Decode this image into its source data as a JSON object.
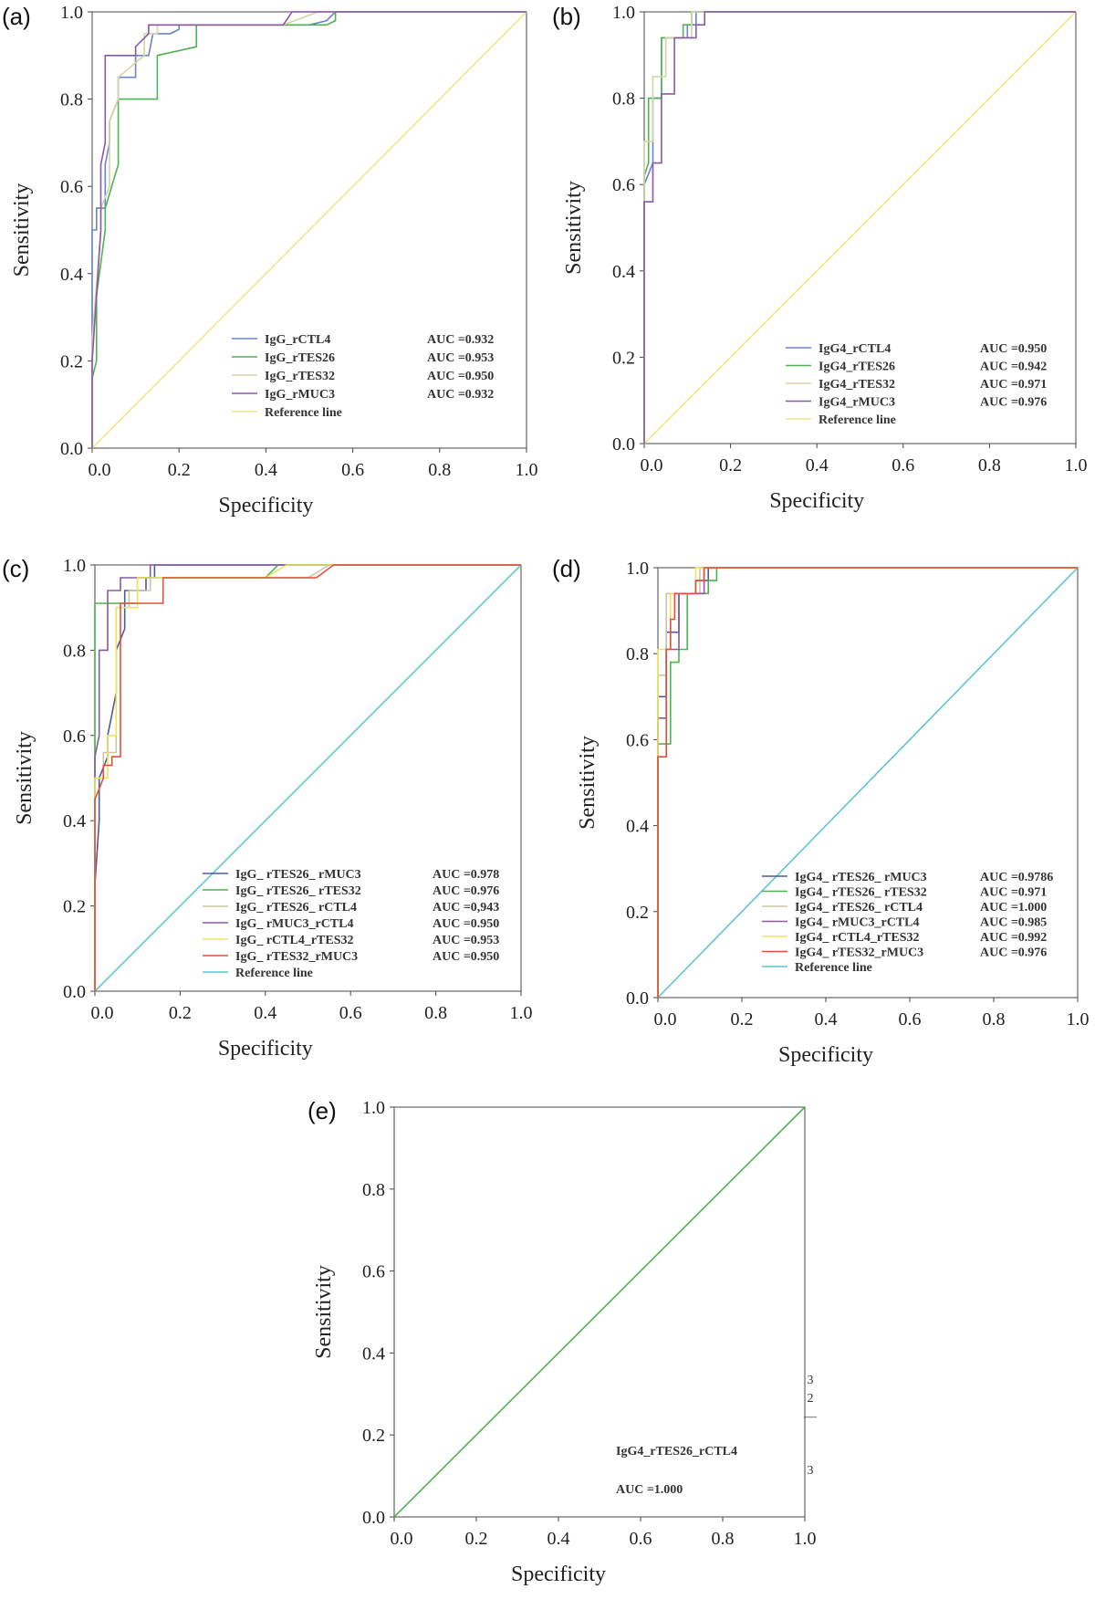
{
  "chart_data": [
    {
      "type": "line",
      "panel_label": "(a)",
      "xlabel": "Specificity",
      "ylabel": "Sensitivity",
      "xlim": [
        0,
        1
      ],
      "ylim": [
        0,
        1
      ],
      "xticks": [
        "0.0",
        "0.2",
        "0.4",
        "0.6",
        "0.8",
        "1.0"
      ],
      "yticks": [
        "0.0",
        "0.2",
        "0.4",
        "0.6",
        "0.8",
        "1.0"
      ],
      "legend_position": "bottom-right",
      "series": [
        {
          "name": "IgG_rCTL4",
          "auc": "AUC =0.932",
          "color": "#6b83c9",
          "x": [
            0,
            0,
            0.01,
            0.01,
            0.03,
            0.03,
            0.04,
            0.04,
            0.06,
            0.06,
            0.1,
            0.1,
            0.13,
            0.14,
            0.16,
            0.18,
            0.2,
            0.2,
            0.5,
            0.54,
            0.56,
            1.0
          ],
          "y": [
            0,
            0.5,
            0.5,
            0.55,
            0.55,
            0.65,
            0.7,
            0.75,
            0.8,
            0.85,
            0.85,
            0.9,
            0.9,
            0.95,
            0.95,
            0.95,
            0.96,
            0.97,
            0.97,
            0.98,
            1.0,
            1.0
          ]
        },
        {
          "name": "IgG_rTES26",
          "auc": "AUC =0.953",
          "color": "#4fb352",
          "x": [
            0,
            0,
            0.01,
            0.01,
            0.03,
            0.03,
            0.06,
            0.06,
            0.09,
            0.09,
            0.15,
            0.15,
            0.24,
            0.24,
            0.54,
            0.56,
            0.56,
            1.0
          ],
          "y": [
            0,
            0.16,
            0.2,
            0.35,
            0.5,
            0.55,
            0.65,
            0.8,
            0.8,
            0.8,
            0.8,
            0.9,
            0.92,
            0.97,
            0.97,
            0.98,
            1.0,
            1.0
          ]
        },
        {
          "name": "IgG_rTES32",
          "auc": "AUC =0.950",
          "color": "#d6d3a6",
          "x": [
            0,
            0,
            0.02,
            0.02,
            0.04,
            0.04,
            0.06,
            0.06,
            0.12,
            0.12,
            0.15,
            0.15,
            0.44,
            0.52,
            1.0
          ],
          "y": [
            0,
            0.25,
            0.5,
            0.55,
            0.6,
            0.75,
            0.8,
            0.85,
            0.9,
            0.95,
            0.95,
            0.97,
            0.97,
            1.0,
            1.0
          ]
        },
        {
          "name": "IgG_rMUC3",
          "auc": "AUC =0.932",
          "color": "#8b58a3",
          "x": [
            0,
            0,
            0.02,
            0.02,
            0.03,
            0.03,
            0.1,
            0.1,
            0.13,
            0.13,
            0.44,
            0.46,
            1.0
          ],
          "y": [
            0,
            0.2,
            0.5,
            0.65,
            0.7,
            0.9,
            0.9,
            0.92,
            0.95,
            0.97,
            0.97,
            1.0,
            1.0
          ]
        },
        {
          "name": "Reference line",
          "auc": "",
          "color": "#ece98a",
          "x": [
            0,
            1
          ],
          "y": [
            0,
            1
          ]
        }
      ]
    },
    {
      "type": "line",
      "panel_label": "(b)",
      "xlabel": "Specificity",
      "ylabel": "Sensitivity",
      "xlim": [
        0,
        1
      ],
      "ylim": [
        0,
        1
      ],
      "xticks": [
        "0.0",
        "0.2",
        "0.4",
        "0.6",
        "0.8",
        "1.0"
      ],
      "yticks": [
        "0.0",
        "0.2",
        "0.4",
        "0.6",
        "0.8",
        "1.0"
      ],
      "legend_position": "bottom-right",
      "series": [
        {
          "name": "IgG4_rCTL4",
          "auc": "AUC =0.950",
          "color": "#6b83c9",
          "x": [
            0,
            0,
            0.02,
            0.02,
            0.04,
            0.04,
            0.1,
            0.1,
            0.12,
            0.12,
            1.0
          ],
          "y": [
            0,
            0.6,
            0.65,
            0.8,
            0.8,
            0.94,
            0.94,
            0.97,
            0.97,
            1.0,
            1.0
          ]
        },
        {
          "name": "IgG4_rTES26",
          "auc": "AUC =0.942",
          "color": "#4fb352",
          "x": [
            0,
            0,
            0.01,
            0.01,
            0.04,
            0.04,
            0.09,
            0.09,
            0.11,
            0.11,
            1.0
          ],
          "y": [
            0,
            0.62,
            0.65,
            0.8,
            0.8,
            0.94,
            0.94,
            0.97,
            0.97,
            1.0,
            1.0
          ]
        },
        {
          "name": "IgG4_rTES32",
          "auc": "AUC =0.971",
          "color": "#d6d3a6",
          "x": [
            0,
            0,
            0.02,
            0.02,
            0.05,
            0.05,
            0.11,
            0.11,
            1.0
          ],
          "y": [
            0,
            0.7,
            0.7,
            0.85,
            0.85,
            0.94,
            0.94,
            1.0,
            1.0
          ]
        },
        {
          "name": "IgG4_rMUC3",
          "auc": "AUC =0.976",
          "color": "#8b58a3",
          "x": [
            0,
            0,
            0.02,
            0.02,
            0.04,
            0.04,
            0.07,
            0.07,
            0.12,
            0.12,
            0.14,
            0.14,
            1.0
          ],
          "y": [
            0,
            0.56,
            0.56,
            0.65,
            0.65,
            0.81,
            0.81,
            0.94,
            0.94,
            0.97,
            0.97,
            1.0,
            1.0
          ]
        },
        {
          "name": "Reference line",
          "auc": "",
          "color": "#ece98a",
          "x": [
            0,
            1
          ],
          "y": [
            0,
            1
          ]
        }
      ]
    },
    {
      "type": "line",
      "panel_label": "(c)",
      "xlabel": "Specificity",
      "ylabel": "Sensitivity",
      "xlim": [
        0,
        1
      ],
      "ylim": [
        0,
        1
      ],
      "xticks": [
        "0.0",
        "0.2",
        "0.4",
        "0.6",
        "0.8",
        "1.0"
      ],
      "yticks": [
        "0.0",
        "0.2",
        "0.4",
        "0.6",
        "0.8",
        "1.0"
      ],
      "legend_position": "bottom-right",
      "series": [
        {
          "name": "IgG_ rTES26_ rMUC3",
          "auc": "AUC =0.978",
          "color": "#4a5c9c",
          "x": [
            0,
            0,
            0.01,
            0.01,
            0.03,
            0.03,
            0.05,
            0.05,
            0.07,
            0.07,
            0.12,
            0.12,
            0.14,
            0.14,
            1.0
          ],
          "y": [
            0,
            0.25,
            0.4,
            0.5,
            0.55,
            0.6,
            0.7,
            0.8,
            0.85,
            0.94,
            0.94,
            0.97,
            0.97,
            1.0,
            1.0
          ]
        },
        {
          "name": "IgG_ rTES26_ rTES32",
          "auc": "AUC =0.976",
          "color": "#4fb352",
          "x": [
            0,
            0,
            0.1,
            0.1,
            0.4,
            0.43,
            1.0
          ],
          "y": [
            0,
            0.91,
            0.91,
            0.97,
            0.97,
            1.0,
            1.0
          ]
        },
        {
          "name": "IgG_ rTES26_ rCTL4",
          "auc": "AUC =0,943",
          "color": "#c9c7a3",
          "x": [
            0,
            0,
            0.02,
            0.02,
            0.05,
            0.05,
            0.08,
            0.08,
            0.13,
            0.13,
            0.5,
            0.55,
            1.0
          ],
          "y": [
            0,
            0.5,
            0.5,
            0.56,
            0.56,
            0.9,
            0.9,
            0.94,
            0.94,
            0.97,
            0.97,
            1.0,
            1.0
          ]
        },
        {
          "name": "IgG_ rMUC3_rCTL4",
          "auc": "AUC =0.950",
          "color": "#8b58a3",
          "x": [
            0,
            0,
            0.01,
            0.01,
            0.03,
            0.03,
            0.06,
            0.06,
            0.13,
            0.13,
            1.0
          ],
          "y": [
            0,
            0.55,
            0.6,
            0.8,
            0.8,
            0.94,
            0.94,
            0.97,
            0.97,
            1.0,
            1.0
          ]
        },
        {
          "name": "IgG_ rCTL4_rTES32",
          "auc": "AUC =0.953",
          "color": "#f0e35a",
          "x": [
            0,
            0,
            0.03,
            0.03,
            0.05,
            0.05,
            0.1,
            0.1,
            0.4,
            0.45,
            1.0
          ],
          "y": [
            0,
            0.5,
            0.5,
            0.6,
            0.6,
            0.9,
            0.9,
            0.97,
            0.97,
            1.0,
            1.0
          ]
        },
        {
          "name": "IgG_ rTES32_rMUC3",
          "auc": "AUC =0.950",
          "color": "#e0503c",
          "x": [
            0,
            0,
            0.02,
            0.02,
            0.04,
            0.04,
            0.06,
            0.06,
            0.16,
            0.16,
            0.52,
            0.56,
            1.0
          ],
          "y": [
            0,
            0.45,
            0.5,
            0.53,
            0.53,
            0.55,
            0.55,
            0.91,
            0.91,
            0.97,
            0.97,
            1.0,
            1.0
          ]
        },
        {
          "name": "Reference line",
          "auc": "",
          "color": "#5fc5cf",
          "x": [
            0,
            1
          ],
          "y": [
            0,
            1
          ]
        }
      ]
    },
    {
      "type": "line",
      "panel_label": "(d)",
      "xlabel": "Specificity",
      "ylabel": "Sensitivity",
      "xlim": [
        0,
        1
      ],
      "ylim": [
        0,
        1
      ],
      "xticks": [
        "0.0",
        "0.2",
        "0.4",
        "0.6",
        "0.8",
        "1.0"
      ],
      "yticks": [
        "0.0",
        "0.2",
        "0.4",
        "0.6",
        "0.8",
        "1.0"
      ],
      "legend_position": "bottom-right",
      "series": [
        {
          "name": "IgG4_ rTES26_ rMUC3",
          "auc": "AUC =0.9786",
          "color": "#4a5c9c",
          "x": [
            0,
            0,
            0.02,
            0.02,
            0.05,
            0.05,
            0.09,
            0.09,
            0.12,
            0.12,
            1.0
          ],
          "y": [
            0,
            0.7,
            0.7,
            0.85,
            0.85,
            0.94,
            0.94,
            0.97,
            0.97,
            1.0,
            1.0
          ]
        },
        {
          "name": "IgG4_ rTES26_ rTES32",
          "auc": "AUC =0.971",
          "color": "#4fb352",
          "x": [
            0,
            0,
            0.03,
            0.03,
            0.05,
            0.05,
            0.07,
            0.07,
            0.12,
            0.12,
            0.14,
            0.14,
            1.0
          ],
          "y": [
            0,
            0.59,
            0.59,
            0.78,
            0.78,
            0.81,
            0.81,
            0.94,
            0.94,
            0.97,
            0.97,
            1.0,
            1.0
          ]
        },
        {
          "name": "IgG4_ rTES26_ rCTL4",
          "auc": "AUC =1.000",
          "color": "#c9c7a3",
          "x": [
            0,
            0,
            0.02,
            0.02,
            0.1,
            0.1,
            1.0
          ],
          "y": [
            0,
            0.75,
            0.75,
            0.94,
            0.94,
            1.0,
            1.0
          ]
        },
        {
          "name": "IgG4_ rMUC3_rCTL4",
          "auc": "AUC =0.985",
          "color": "#8b58a3",
          "x": [
            0,
            0,
            0.02,
            0.02,
            0.05,
            0.05,
            0.11,
            0.11,
            1.0
          ],
          "y": [
            0,
            0.65,
            0.65,
            0.81,
            0.81,
            0.94,
            0.94,
            1.0,
            1.0
          ]
        },
        {
          "name": "IgG4_ rCTL4_rTES32",
          "auc": "AUC =0.992",
          "color": "#f0e35a",
          "x": [
            0,
            0,
            0.03,
            0.03,
            0.09,
            0.09,
            1.0
          ],
          "y": [
            0,
            0.81,
            0.81,
            0.94,
            0.94,
            1.0,
            1.0
          ]
        },
        {
          "name": "IgG4_ rTES32_rMUC3",
          "auc": "AUC =0.976",
          "color": "#e0503c",
          "x": [
            0,
            0,
            0.02,
            0.02,
            0.03,
            0.03,
            0.04,
            0.04,
            0.09,
            0.09,
            0.11,
            0.11,
            1.0
          ],
          "y": [
            0,
            0.56,
            0.56,
            0.81,
            0.81,
            0.88,
            0.88,
            0.94,
            0.94,
            0.97,
            0.97,
            1.0,
            1.0
          ]
        },
        {
          "name": "Reference line",
          "auc": "",
          "color": "#5fc5cf",
          "x": [
            0,
            1
          ],
          "y": [
            0,
            1
          ]
        }
      ]
    },
    {
      "type": "line",
      "panel_label": "(e)",
      "xlabel": "Specificity",
      "ylabel": "Sensitivity",
      "xlim": [
        0,
        1
      ],
      "ylim": [
        0,
        1
      ],
      "xticks": [
        "0.0",
        "0.2",
        "0.4",
        "0.6",
        "0.8",
        "1.0"
      ],
      "yticks": [
        "0.0",
        "0.2",
        "0.4",
        "0.6",
        "0.8",
        "1.0"
      ],
      "legend_position": "bottom-right",
      "annotation_name": "IgG4_rTES26_rCTL4",
      "annotation_auc": "AUC =1.000",
      "side_marks": [
        "3",
        "2",
        "—",
        "3"
      ],
      "series": [
        {
          "name": "",
          "auc": "",
          "color": "#4fb352",
          "x": [
            0,
            1
          ],
          "y": [
            0,
            1
          ]
        }
      ]
    }
  ]
}
